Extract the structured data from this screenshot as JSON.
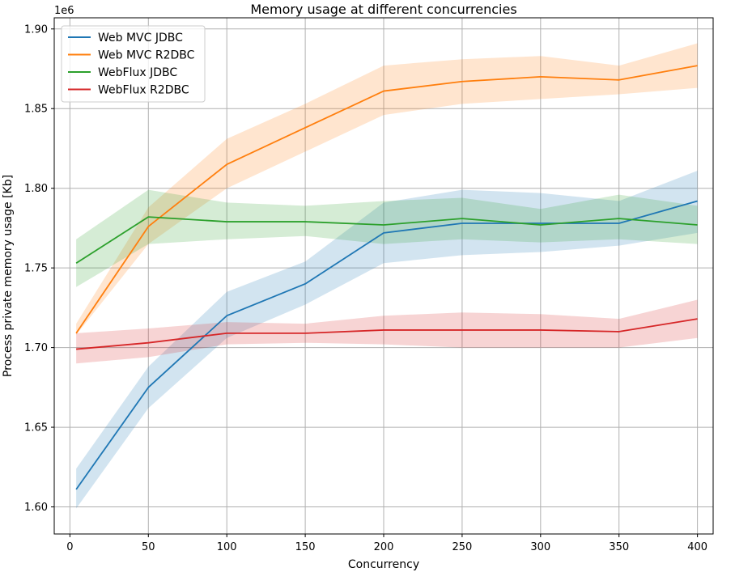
{
  "chart_data": {
    "type": "line",
    "title": "Memory usage at different concurrencies",
    "xlabel": "Concurrency",
    "ylabel": "Process private memory usage [Kb]",
    "y_offset_label": "1e6",
    "xlim": [
      -10,
      410
    ],
    "ylim": [
      1.583,
      1.907
    ],
    "x_ticks": [
      0,
      50,
      100,
      150,
      200,
      250,
      300,
      350,
      400
    ],
    "y_ticks": [
      1.6,
      1.65,
      1.7,
      1.75,
      1.8,
      1.85,
      1.9
    ],
    "y_tick_labels": [
      "1.60",
      "1.65",
      "1.70",
      "1.75",
      "1.80",
      "1.85",
      "1.90"
    ],
    "grid": true,
    "legend_position": "top-left",
    "x": [
      4,
      50,
      100,
      150,
      200,
      250,
      300,
      350,
      400
    ],
    "series": [
      {
        "name": "Web MVC JDBC",
        "color": "#1f77b4",
        "values": [
          1.611,
          1.675,
          1.72,
          1.74,
          1.772,
          1.778,
          1.778,
          1.778,
          1.792
        ],
        "lower": [
          1.599,
          1.662,
          1.706,
          1.727,
          1.753,
          1.758,
          1.76,
          1.764,
          1.772
        ],
        "upper": [
          1.624,
          1.688,
          1.735,
          1.754,
          1.791,
          1.799,
          1.797,
          1.792,
          1.811
        ]
      },
      {
        "name": "Web MVC R2DBC",
        "color": "#ff7f0e",
        "values": [
          1.709,
          1.776,
          1.815,
          1.838,
          1.861,
          1.867,
          1.87,
          1.868,
          1.877
        ],
        "lower": [
          1.708,
          1.765,
          1.8,
          1.823,
          1.846,
          1.853,
          1.856,
          1.859,
          1.863
        ],
        "upper": [
          1.715,
          1.788,
          1.831,
          1.853,
          1.877,
          1.881,
          1.883,
          1.877,
          1.891
        ]
      },
      {
        "name": "WebFlux JDBC",
        "color": "#2ca02c",
        "values": [
          1.753,
          1.782,
          1.779,
          1.779,
          1.777,
          1.781,
          1.777,
          1.781,
          1.777
        ],
        "lower": [
          1.738,
          1.765,
          1.768,
          1.77,
          1.765,
          1.768,
          1.766,
          1.768,
          1.765
        ],
        "upper": [
          1.768,
          1.799,
          1.791,
          1.789,
          1.792,
          1.794,
          1.787,
          1.796,
          1.789
        ]
      },
      {
        "name": "WebFlux R2DBC",
        "color": "#d62728",
        "values": [
          1.699,
          1.703,
          1.709,
          1.709,
          1.711,
          1.711,
          1.711,
          1.71,
          1.718
        ],
        "lower": [
          1.69,
          1.694,
          1.702,
          1.703,
          1.702,
          1.7,
          1.7,
          1.7,
          1.706
        ],
        "upper": [
          1.709,
          1.712,
          1.716,
          1.715,
          1.72,
          1.722,
          1.721,
          1.718,
          1.73
        ]
      }
    ]
  }
}
